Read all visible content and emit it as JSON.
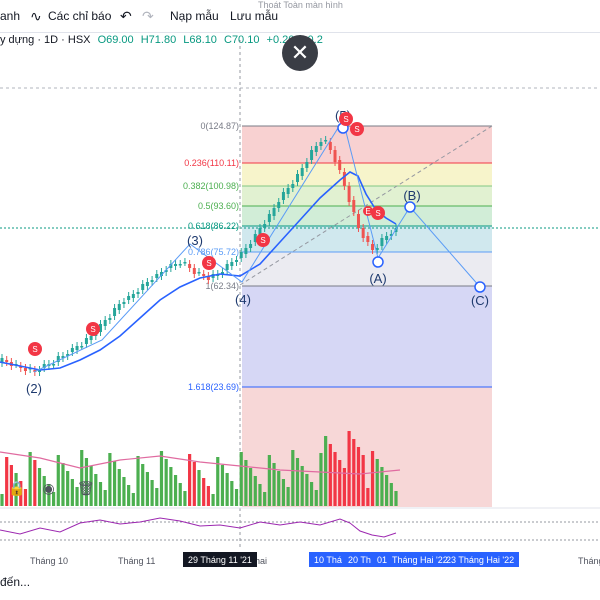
{
  "toolbar": {
    "partial_left": "anh",
    "indicators_label": "Các chỉ báo",
    "templates_label": "Nạp mẫu",
    "save_label": "Lưu mẫu",
    "tooltip_ghost": "Thoát Toàn màn hình"
  },
  "infobar": {
    "symbol": "y dựng · 1D · HSX",
    "open": "O69.00",
    "high": "H71.80",
    "low": "L68.10",
    "close": "C70.10",
    "change": "+0.20 (+0.2",
    "up_color": "#089981"
  },
  "fib": {
    "levels": [
      {
        "label": "0(124.87)",
        "color": "#787b86"
      },
      {
        "label": "0.236(110.11)",
        "color": "#f23645"
      },
      {
        "label": "0.382(100.98)",
        "color": "#81c784"
      },
      {
        "label": "0.5(93.60)",
        "color": "#4caf50"
      },
      {
        "label": "0.618(86.22)",
        "color": "#089981"
      },
      {
        "label": "0.786(75.72)",
        "color": "#5b9cf6"
      },
      {
        "label": "1(62.34)",
        "color": "#787b86"
      },
      {
        "label": "1.618(23.69)",
        "color": "#2962ff"
      }
    ]
  },
  "waves": {
    "w2": "(2)",
    "w3": "(3)",
    "w4": "(4)",
    "w5": "(5)",
    "wA": "(A)",
    "wB": "(B)",
    "wC": "(C)"
  },
  "dividend_mark": "S",
  "ema_label": "E",
  "xaxis": {
    "ticks": [
      "Tháng 10",
      "Tháng 11",
      "hai",
      "Tháng Hai '22",
      "Tháng"
    ],
    "cursor_date": "29 Tháng 11 '21",
    "range_start": "10 Thá",
    "range_mid": "20 Th",
    "range_end": "01",
    "range_end2": "23 Tháng Hai '22"
  },
  "status_text": "đến..."
}
